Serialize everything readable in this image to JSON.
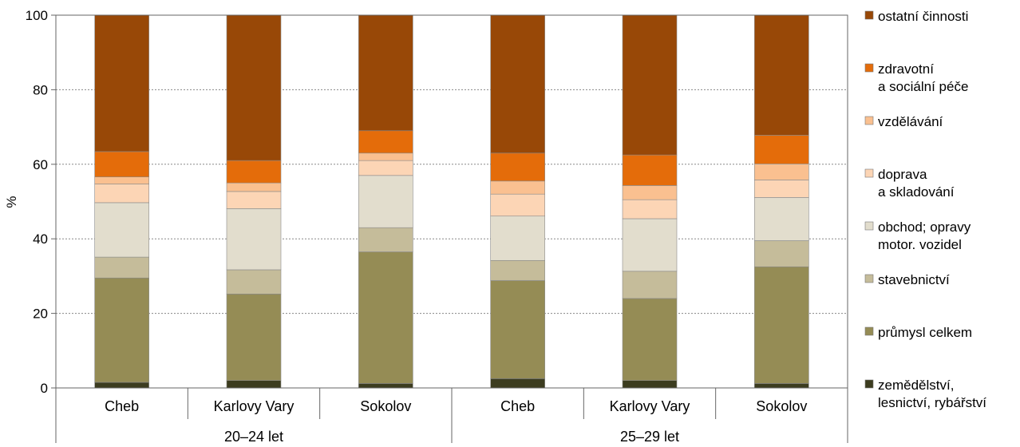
{
  "chart_data": {
    "type": "bar",
    "stacked": true,
    "ylabel": "%",
    "ylim": [
      0,
      100
    ],
    "yticks": [
      0,
      20,
      40,
      60,
      80,
      100
    ],
    "grid": true,
    "legend_position": "right",
    "categories": [
      "Cheb",
      "Karlovy Vary",
      "Sokolov",
      "Cheb",
      "Karlovy Vary",
      "Sokolov"
    ],
    "groups": [
      {
        "label": "20–24 let",
        "categories": [
          0,
          1,
          2
        ]
      },
      {
        "label": "25–29 let",
        "categories": [
          3,
          4,
          5
        ]
      }
    ],
    "series": [
      {
        "name": "zemědělství, lesnictví, rybářství",
        "color": "#3c3c1f",
        "values": [
          1.5,
          2.0,
          1.2,
          2.5,
          2.0,
          1.2
        ]
      },
      {
        "name": "průmysl celkem",
        "color": "#958c55",
        "values": [
          28.0,
          23.2,
          35.3,
          26.3,
          22.0,
          31.3
        ]
      },
      {
        "name": "stavebnictví",
        "color": "#c5bc9a",
        "values": [
          5.6,
          6.5,
          6.5,
          5.4,
          7.3,
          7.0
        ]
      },
      {
        "name": "obchod; opravy motor. vozidel",
        "color": "#e2ddcd",
        "values": [
          14.6,
          16.4,
          14.0,
          11.9,
          14.1,
          11.6
        ]
      },
      {
        "name": "doprava a skladování",
        "color": "#fcd5b5",
        "values": [
          5.0,
          4.6,
          4.0,
          5.9,
          5.1,
          4.7
        ]
      },
      {
        "name": "vzdělávání",
        "color": "#fac090",
        "values": [
          1.9,
          2.3,
          2.0,
          3.5,
          3.8,
          4.3
        ]
      },
      {
        "name": "zdravotní a sociální péče",
        "color": "#e46c0a",
        "values": [
          6.8,
          6.0,
          6.0,
          7.5,
          8.2,
          7.7
        ]
      },
      {
        "name": "ostatní činnosti",
        "color": "#984807",
        "values": [
          36.6,
          39.0,
          31.0,
          37.0,
          37.5,
          32.2
        ]
      }
    ],
    "legend": [
      {
        "lines": [
          "ostatní činnosti"
        ],
        "series": 7
      },
      {
        "lines": [
          "zdravotní",
          "a sociální péče"
        ],
        "series": 6
      },
      {
        "lines": [
          "vzdělávání"
        ],
        "series": 5
      },
      {
        "lines": [
          "doprava",
          "a skladování"
        ],
        "series": 4
      },
      {
        "lines": [
          "obchod; opravy",
          "motor. vozidel"
        ],
        "series": 3
      },
      {
        "lines": [
          "stavebnictví"
        ],
        "series": 2
      },
      {
        "lines": [
          "průmysl celkem"
        ],
        "series": 1
      },
      {
        "lines": [
          "zemědělství,",
          "lesnictví, rybářství"
        ],
        "series": 0
      }
    ]
  }
}
